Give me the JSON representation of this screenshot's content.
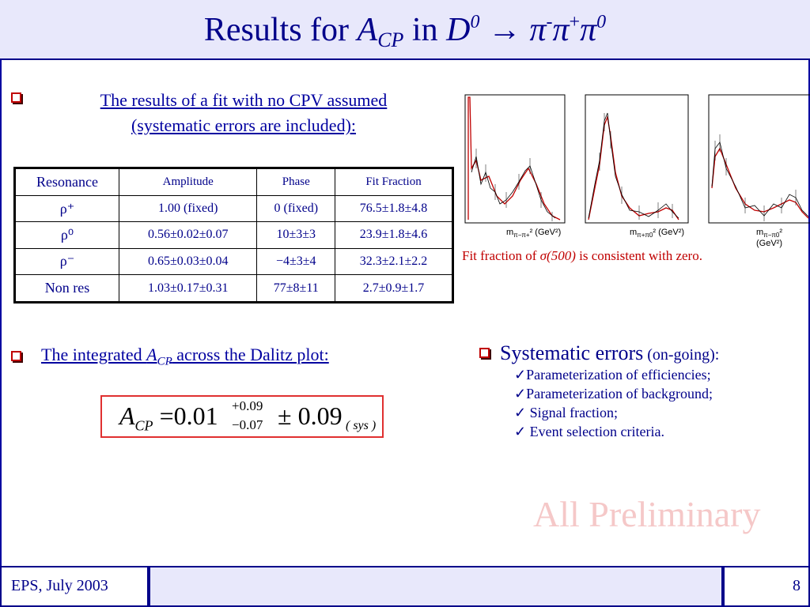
{
  "slide": {
    "title_prefix": "Results for ",
    "title_A": "A",
    "title_A_sub": "CP",
    "title_in": " in ",
    "title_D": "D",
    "title_D_sup": "0",
    "title_arrow": " → ",
    "title_pi1": "π",
    "title_pi1_sup": "-",
    "title_pi2": "π",
    "title_pi2_sup": "+",
    "title_pi3": "π",
    "title_pi3_sup": "0"
  },
  "bullet1": {
    "line1": "The results of a fit with no CPV assumed",
    "line2": "(systematic errors are included):"
  },
  "table": {
    "headers": [
      "Resonance",
      "Amplitude",
      "Phase",
      "Fit Fraction"
    ],
    "rows": [
      [
        "ρ⁺",
        "1.00 (fixed)",
        "0 (fixed)",
        "76.5±1.8±4.8"
      ],
      [
        "ρ⁰",
        "0.56±0.02±0.07",
        "10±3±3",
        "23.9±1.8±4.6"
      ],
      [
        "ρ⁻",
        "0.65±0.03±0.04",
        "−4±3±4",
        "32.3±2.1±2.2"
      ],
      [
        "Non res",
        "1.03±0.17±0.31",
        "77±8±11",
        "2.7±0.9±1.7"
      ]
    ]
  },
  "plots": {
    "xlabels": [
      "m",
      "m",
      "m"
    ],
    "xsub": [
      "π−π+",
      "π+π0",
      "π−π0"
    ],
    "xunit": "² (GeV²)"
  },
  "fit_note": {
    "pre": "Fit fraction of ",
    "sigma": "σ(500)",
    "post": " is consistent with zero."
  },
  "bullet2": {
    "pre": "The integrated ",
    "A": "A",
    "sub": "CP",
    "post": " across the Dalitz plot:"
  },
  "formula": {
    "A": "A",
    "sub": "CP",
    "main": " =0.01",
    "up": "+0.09",
    "down": "−0.07",
    "pm": "± 0.09",
    "sys": "( sys )"
  },
  "systematics": {
    "head": "Systematic errors",
    "status": " (on-going):",
    "items": [
      "✓Parameterization of efficiencies;",
      "✓Parameterization of background;",
      "✓ Signal fraction;",
      "✓ Event selection criteria."
    ]
  },
  "watermark": "All Preliminary",
  "footer": {
    "left": "EPS, July 2003",
    "page": "8"
  }
}
